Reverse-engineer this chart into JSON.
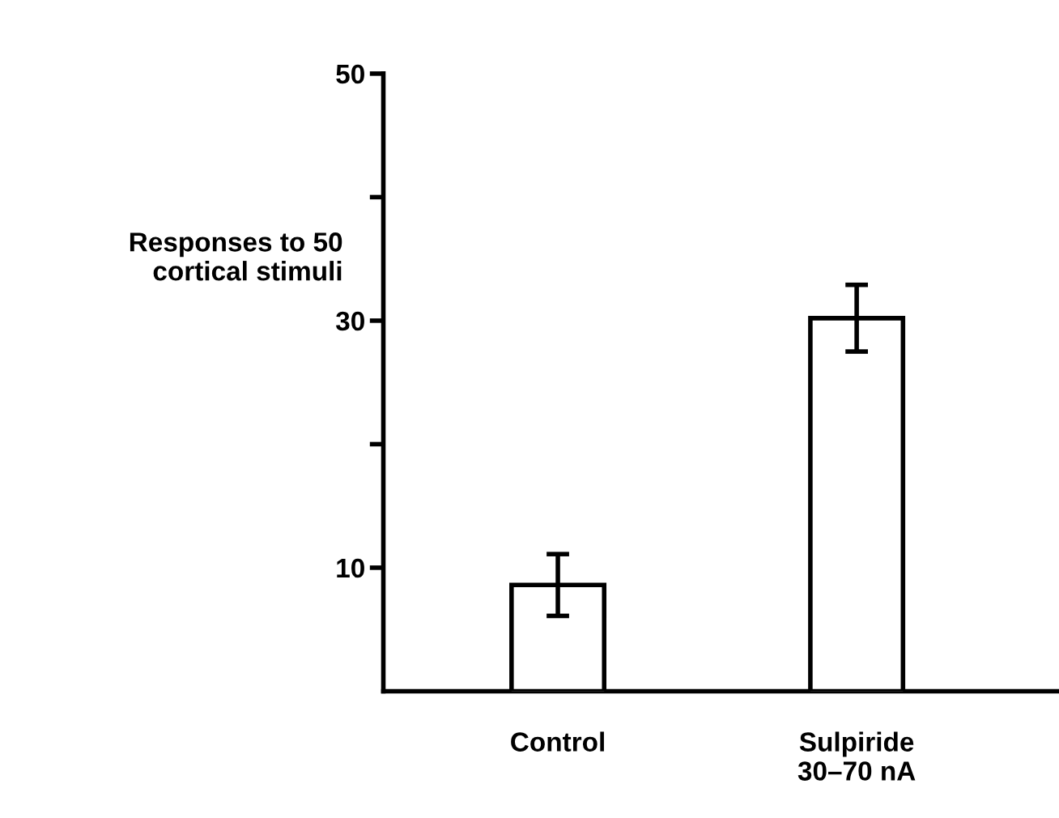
{
  "chart_data": {
    "type": "bar",
    "ylabel": "Responses to 50\ncortical stimuli",
    "categories": [
      "Control",
      "Sulpiride\n30–70 nA"
    ],
    "values": [
      8.6,
      30.2
    ],
    "errors": [
      2.5,
      2.7
    ],
    "color": "#ffffff",
    "ylim": [
      0,
      50
    ],
    "yticks": [
      {
        "value": 10,
        "label": "10"
      },
      {
        "value": 20,
        "label": null
      },
      {
        "value": 30,
        "label": "30"
      },
      {
        "value": 40,
        "label": null
      },
      {
        "value": 50,
        "label": "50"
      }
    ],
    "grid": false,
    "legend": false
  }
}
